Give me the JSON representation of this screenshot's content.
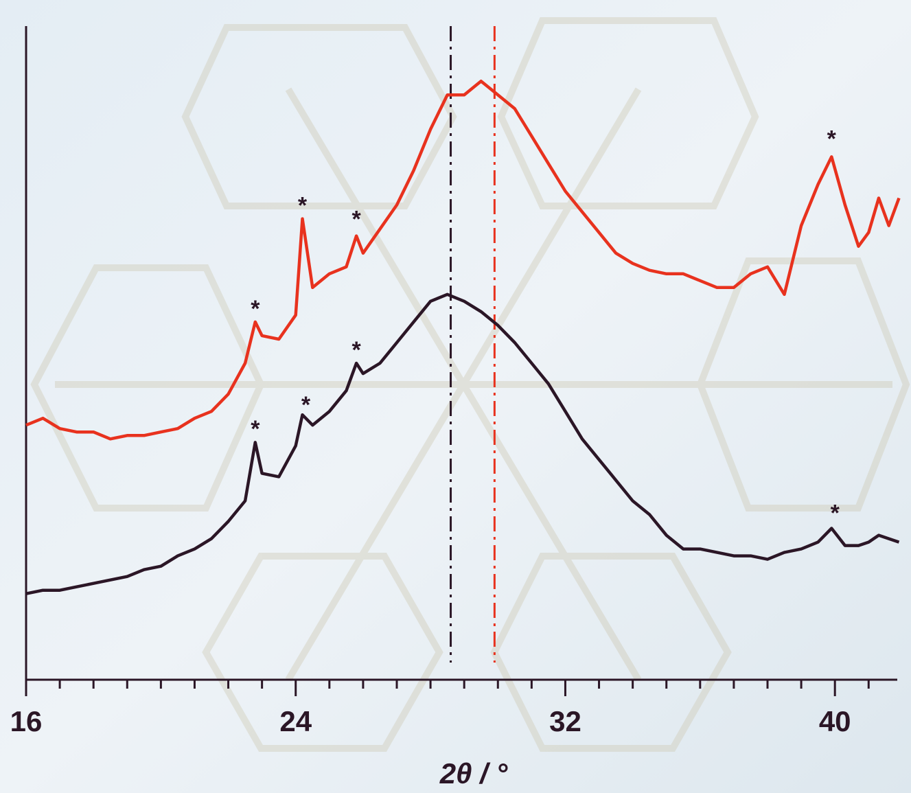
{
  "chart_data": {
    "type": "line",
    "x_label": "2θ / °",
    "x": [
      16,
      16.5,
      17,
      17.5,
      18,
      18.5,
      19,
      19.5,
      20,
      20.5,
      21,
      21.5,
      22,
      22.5,
      22.8,
      23,
      23.5,
      24,
      24.2,
      24.5,
      25,
      25.5,
      25.8,
      26,
      26.5,
      27,
      27.5,
      28,
      28.5,
      29,
      29.5,
      30,
      30.5,
      31,
      31.5,
      32,
      32.5,
      33,
      33.5,
      34,
      34.5,
      35,
      35.5,
      36,
      36.5,
      37,
      37.5,
      38,
      38.5,
      39,
      39.5,
      39.9,
      40.3,
      40.7,
      41,
      41.3,
      41.6,
      41.9
    ],
    "series": [
      {
        "color": "#e8321e",
        "values": [
          370,
          380,
          365,
          360,
          360,
          350,
          355,
          355,
          360,
          365,
          380,
          390,
          415,
          460,
          520,
          500,
          495,
          530,
          670,
          570,
          590,
          600,
          645,
          620,
          655,
          690,
          740,
          800,
          850,
          850,
          870,
          850,
          830,
          790,
          750,
          710,
          680,
          650,
          620,
          605,
          595,
          590,
          590,
          580,
          570,
          570,
          590,
          600,
          560,
          660,
          720,
          760,
          690,
          630,
          650,
          700,
          660,
          700
        ]
      },
      {
        "color": "#2b1626",
        "values": [
          125,
          130,
          130,
          135,
          140,
          145,
          150,
          160,
          165,
          180,
          190,
          205,
          230,
          260,
          345,
          300,
          295,
          340,
          385,
          370,
          390,
          420,
          460,
          445,
          460,
          490,
          520,
          550,
          560,
          550,
          535,
          515,
          490,
          460,
          430,
          390,
          350,
          320,
          290,
          260,
          240,
          210,
          190,
          190,
          185,
          180,
          180,
          175,
          185,
          190,
          200,
          220,
          195,
          195,
          200,
          210,
          205,
          200
        ]
      }
    ],
    "xlim": [
      16,
      41.85
    ],
    "xticks": [
      16,
      24,
      32,
      40
    ],
    "xminorticks": [
      17,
      18,
      19,
      20,
      21,
      22,
      23,
      25,
      26,
      27,
      28,
      29,
      30,
      31,
      33,
      34,
      35,
      36,
      37,
      38,
      39,
      41
    ],
    "ylim": [
      0,
      950
    ],
    "vlines": [
      {
        "x": 28.6,
        "color": "#2b1626"
      },
      {
        "x": 29.9,
        "color": "#e8321e"
      }
    ],
    "annotations": [
      {
        "text": "*",
        "x": 22.8,
        "y": 545,
        "color": "#2b1626"
      },
      {
        "text": "*",
        "x": 24.2,
        "y": 695,
        "color": "#2b1626"
      },
      {
        "text": "*",
        "x": 25.8,
        "y": 675,
        "color": "#2b1626"
      },
      {
        "text": "*",
        "x": 39.9,
        "y": 792,
        "color": "#2b1626"
      },
      {
        "text": "*",
        "x": 22.8,
        "y": 370,
        "color": "#2b1626"
      },
      {
        "text": "*",
        "x": 24.3,
        "y": 405,
        "color": "#2b1626"
      },
      {
        "text": "*",
        "x": 25.8,
        "y": 485,
        "color": "#2b1626"
      },
      {
        "text": "*",
        "x": 40.0,
        "y": 248,
        "color": "#2b1626"
      }
    ]
  }
}
